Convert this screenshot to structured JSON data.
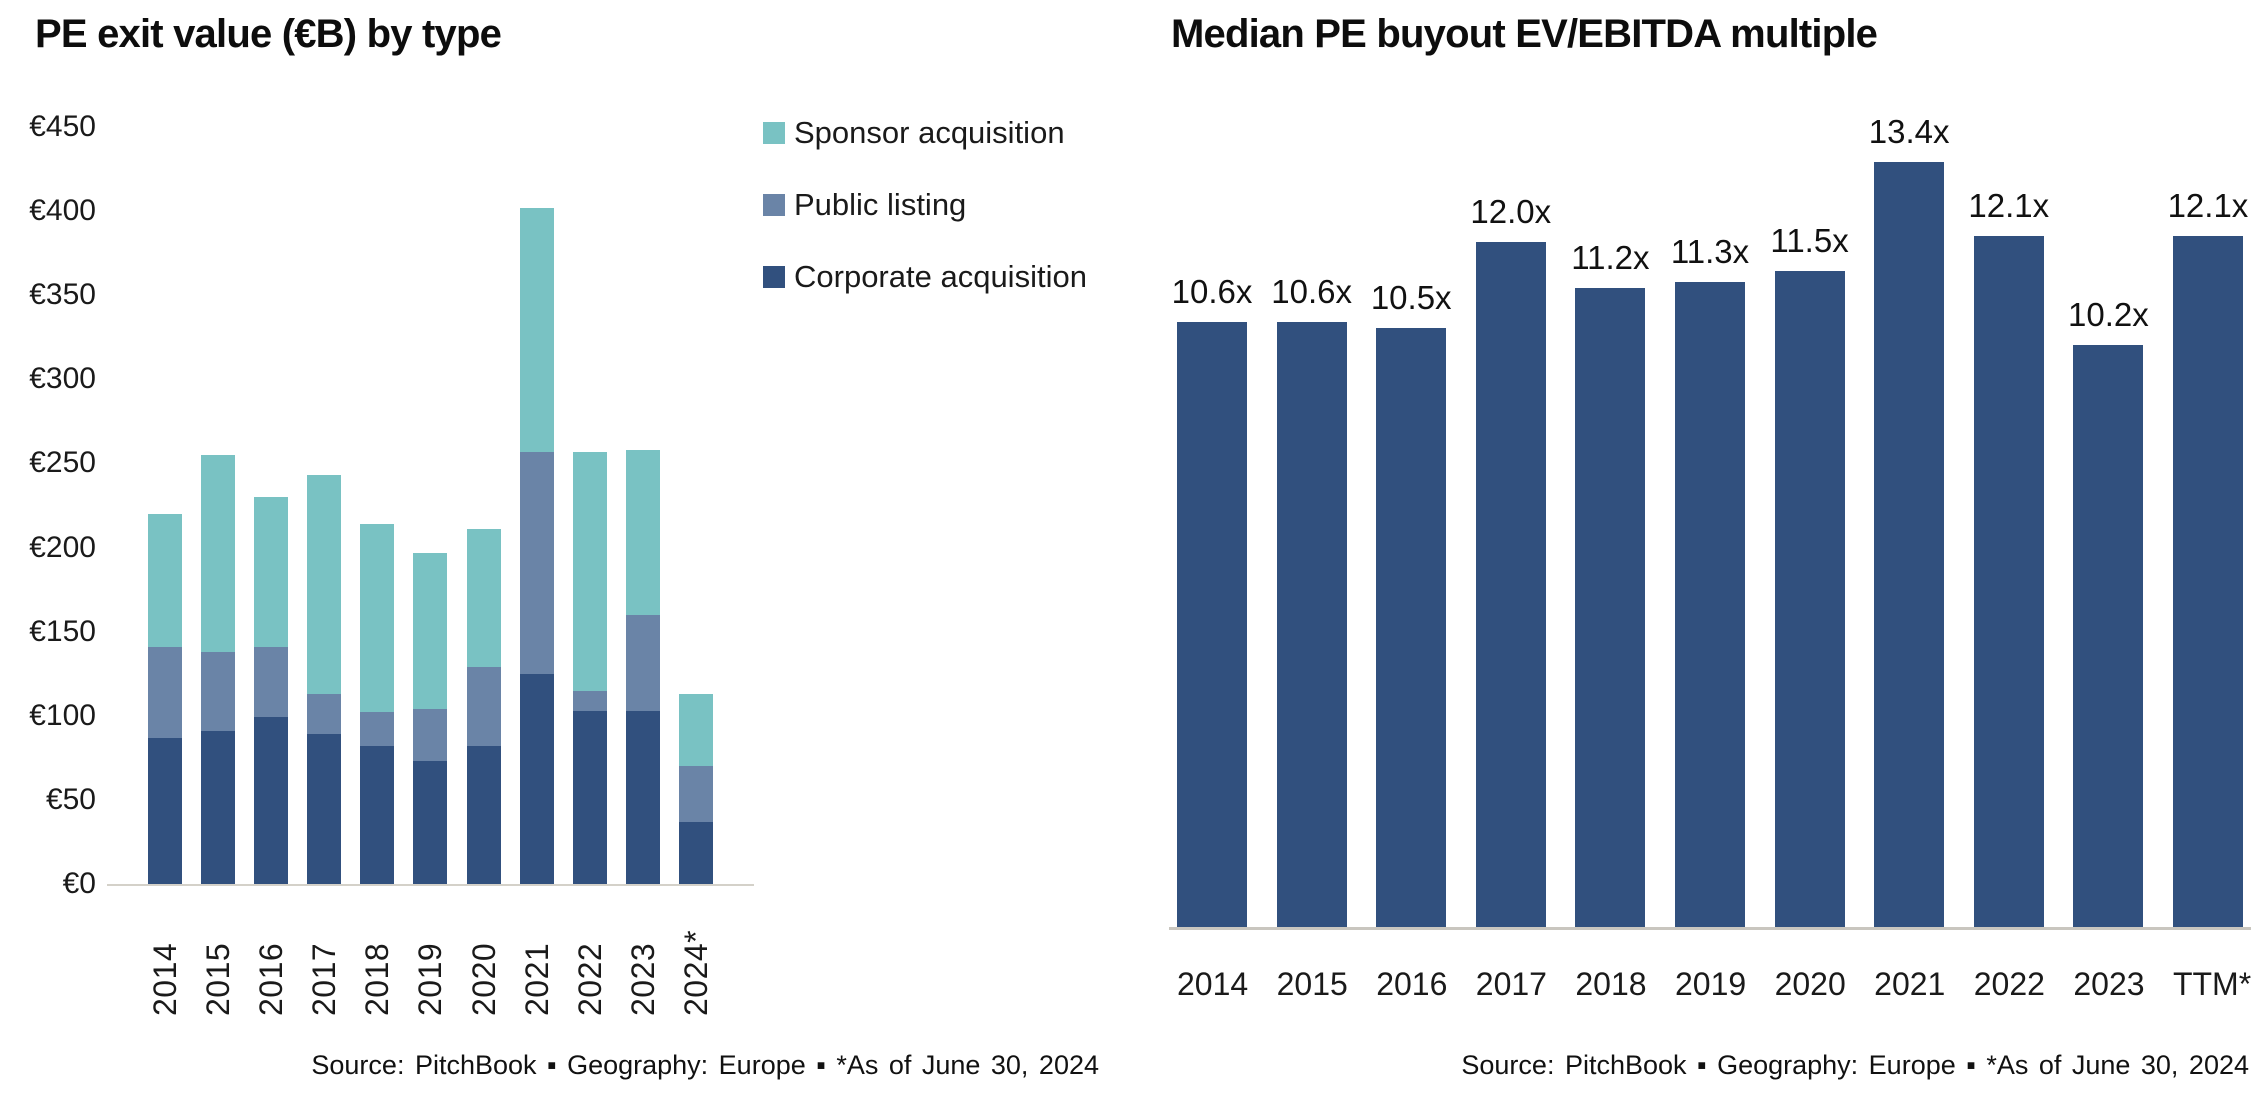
{
  "chart_data": [
    {
      "id": "pe-exit-value-by-type",
      "type": "bar",
      "subtype": "stacked",
      "title": "PE exit value (€B) by type",
      "categories": [
        "2014",
        "2015",
        "2016",
        "2017",
        "2018",
        "2019",
        "2020",
        "2021",
        "2022",
        "2023",
        "2024*"
      ],
      "series": [
        {
          "name": "Corporate acquisition",
          "color": "#31507e",
          "values": [
            87,
            91,
            99,
            89,
            82,
            73,
            82,
            125,
            103,
            103,
            37
          ]
        },
        {
          "name": "Public listing",
          "color": "#6a84a7",
          "values": [
            54,
            47,
            42,
            24,
            20,
            31,
            47,
            132,
            12,
            57,
            33
          ]
        },
        {
          "name": "Sponsor acquisition",
          "color": "#79c2c3",
          "values": [
            79,
            117,
            89,
            130,
            112,
            93,
            82,
            145,
            142,
            98,
            43
          ]
        }
      ],
      "totals": [
        220,
        255,
        230,
        243,
        214,
        197,
        211,
        402,
        257,
        258,
        113
      ],
      "y_axis": {
        "min": 0,
        "max": 450,
        "step": 50,
        "currency_prefix": "€",
        "tick_labels": [
          "€0",
          "€50",
          "€100",
          "€150",
          "€200",
          "€250",
          "€300",
          "€350",
          "€400",
          "€450"
        ]
      },
      "x_tick_rotation": -90,
      "grid": false,
      "legend_position": "right-top",
      "legend": [
        {
          "label": "Sponsor acquisition",
          "color": "#79c2c3"
        },
        {
          "label": "Public listing",
          "color": "#6a84a7"
        },
        {
          "label": "Corporate acquisition",
          "color": "#31507e"
        }
      ],
      "source": "Source: PitchBook ▪ Geography: Europe ▪ *As of June 30, 2024"
    },
    {
      "id": "median-pe-buyout-ev-ebitda",
      "type": "bar",
      "title": "Median PE buyout EV/EBITDA multiple",
      "categories": [
        "2014",
        "2015",
        "2016",
        "2017",
        "2018",
        "2019",
        "2020",
        "2021",
        "2022",
        "2023",
        "TTM*"
      ],
      "values": [
        10.6,
        10.6,
        10.5,
        12.0,
        11.2,
        11.3,
        11.5,
        13.4,
        12.1,
        10.2,
        12.1
      ],
      "data_labels": [
        "10.6x",
        "10.6x",
        "10.5x",
        "12.0x",
        "11.2x",
        "11.3x",
        "11.5x",
        "13.4x",
        "12.1x",
        "10.2x",
        "12.1x"
      ],
      "bar_color": "#31507e",
      "ylim": [
        0,
        14.35
      ],
      "y_axis_visible": false,
      "grid": false,
      "source": "Source: PitchBook ▪ Geography: Europe ▪ *As of June 30, 2024"
    }
  ],
  "colors": {
    "background": "#ffffff",
    "text": "#1a1a1a",
    "axis_line": "#cdc9c0",
    "navy": "#31507e",
    "slate": "#6a84a7",
    "teal": "#79c2c3"
  }
}
